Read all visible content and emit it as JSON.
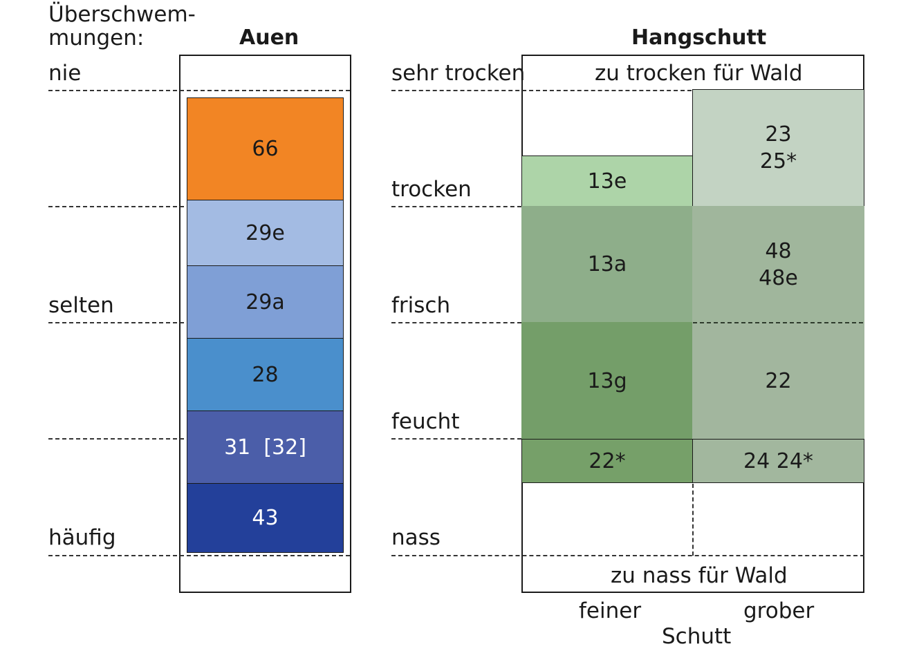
{
  "left_header": {
    "line1": "Überschwem-",
    "line2": "mungen:"
  },
  "auen": {
    "title": "Auen",
    "levels": [
      "nie",
      "selten",
      "häufig"
    ],
    "units": [
      {
        "label": "66",
        "color": "#f28524"
      },
      {
        "label": "29e",
        "color": "#a3bbe3"
      },
      {
        "label": "29a",
        "color": "#7f9fd6"
      },
      {
        "label": "28",
        "color": "#4a8fcc"
      },
      {
        "label": "31  [32]",
        "color": "#4b5ea9"
      },
      {
        "label": "43",
        "color": "#23409a"
      }
    ]
  },
  "hangschutt": {
    "title": "Hangschutt",
    "levels": [
      "sehr trocken",
      "trocken",
      "frisch",
      "feucht",
      "nass"
    ],
    "too_dry": "zu trocken für Wald",
    "too_wet": "zu nass für Wald",
    "fine": {
      "u13e": "13e",
      "u13a": "13a",
      "u13g": "13g",
      "u22s": "22*"
    },
    "coarse": {
      "u23": "23",
      "u25s": "25*",
      "u48": "48",
      "u48e": "48e",
      "u22": "22",
      "u24": "24 24*"
    },
    "colors": {
      "u13e": "#add4a8",
      "u23": "#c3d3c3",
      "u13a": "#8eae8a",
      "u48": "#a0b69c",
      "u13g": "#749e69",
      "u22": "#a2b69e",
      "u22s": "#76a069",
      "u24": "#a2b79e"
    },
    "x_labels": {
      "fine": "feiner",
      "coarse": "grober",
      "axis": "Schutt"
    }
  }
}
